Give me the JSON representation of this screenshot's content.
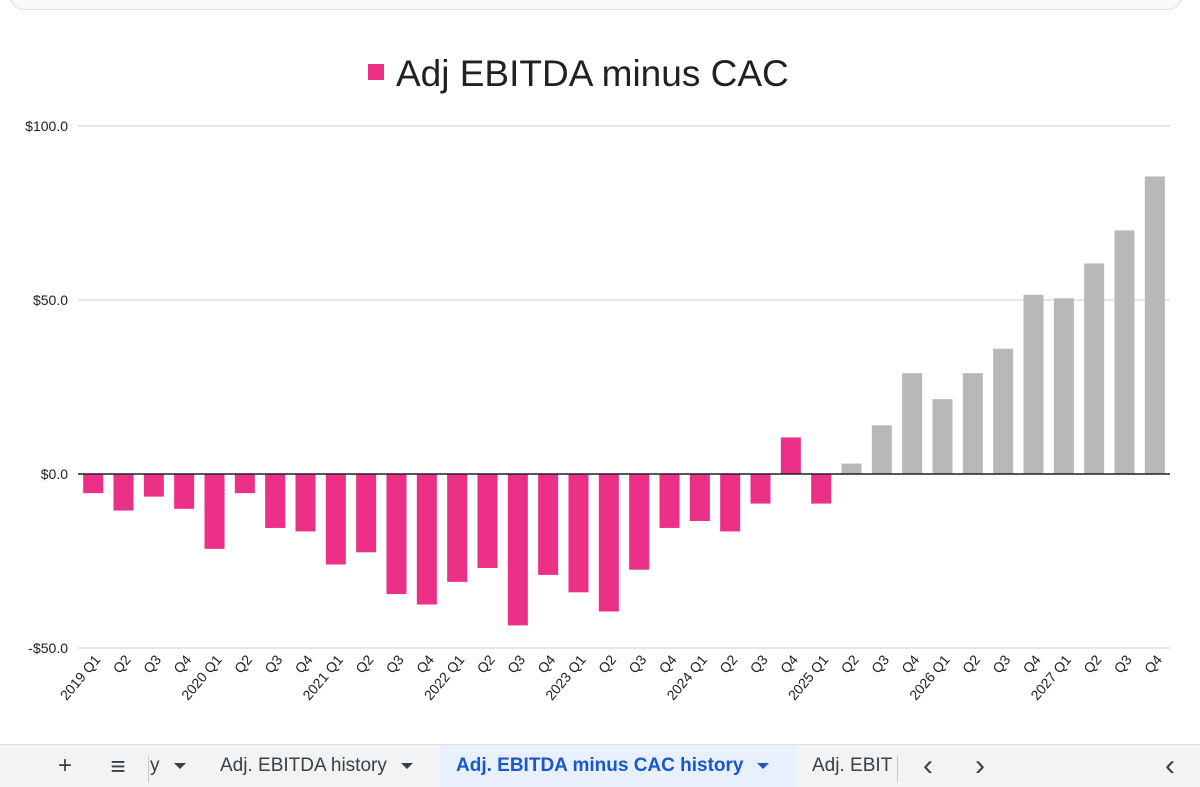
{
  "chart_data": {
    "type": "bar",
    "title": "Adj EBITDA minus CAC",
    "legend": [
      {
        "label": "Adj EBITDA minus CAC",
        "color": "#ec2f87"
      }
    ],
    "legend_position": "top",
    "xlabel": "",
    "ylabel": "",
    "ylim": [
      -50,
      100
    ],
    "yticks": [
      -50,
      0,
      50,
      100
    ],
    "ytick_labels": [
      "-$50.0",
      "$0.0",
      "$50.0",
      "$100.0"
    ],
    "grid": true,
    "colors": {
      "actual": "#ec2f87",
      "projected": "#b8b8b8"
    },
    "categories": [
      "2019 Q1",
      "Q2",
      "Q3",
      "Q4",
      "2020 Q1",
      "Q2",
      "Q3",
      "Q4",
      "2021 Q1",
      "Q2",
      "Q3",
      "Q4",
      "2022 Q1",
      "Q2",
      "Q3",
      "Q4",
      "2023 Q1",
      "Q2",
      "Q3",
      "Q4",
      "2024 Q1",
      "Q2",
      "Q3",
      "Q4",
      "2025 Q1",
      "Q2",
      "Q3",
      "Q4",
      "2026 Q1",
      "Q2",
      "Q3",
      "Q4",
      "2027 Q1",
      "Q2",
      "Q3",
      "Q4"
    ],
    "values": [
      -5.5,
      -10.5,
      -6.5,
      -10,
      -21.5,
      -5.5,
      -15.5,
      -16.5,
      -26,
      -22.5,
      -34.5,
      -37.5,
      -31,
      -27,
      -43.5,
      -29,
      -34,
      -39.5,
      -27.5,
      -15.5,
      -13.5,
      -16.5,
      -8.5,
      10.5,
      -8.5,
      3,
      14,
      29,
      21.5,
      29,
      36,
      51.5,
      50.5,
      60.5,
      70,
      85.5
    ],
    "kinds": [
      "actual",
      "actual",
      "actual",
      "actual",
      "actual",
      "actual",
      "actual",
      "actual",
      "actual",
      "actual",
      "actual",
      "actual",
      "actual",
      "actual",
      "actual",
      "actual",
      "actual",
      "actual",
      "actual",
      "actual",
      "actual",
      "actual",
      "actual",
      "actual",
      "actual",
      "projected",
      "projected",
      "projected",
      "projected",
      "projected",
      "projected",
      "projected",
      "projected",
      "projected",
      "projected",
      "projected"
    ]
  },
  "sheet_bar": {
    "add_icon": "+",
    "menu_icon": "≡",
    "tabs": [
      {
        "label": "y",
        "active": false
      },
      {
        "label": "Adj. EBITDA history",
        "active": false
      },
      {
        "label": "Adj. EBITDA minus CAC history",
        "active": true
      },
      {
        "label": "Adj. EBIT",
        "active": false
      }
    ],
    "nav_prev": "‹",
    "nav_next": "›",
    "collapse": "‹"
  }
}
